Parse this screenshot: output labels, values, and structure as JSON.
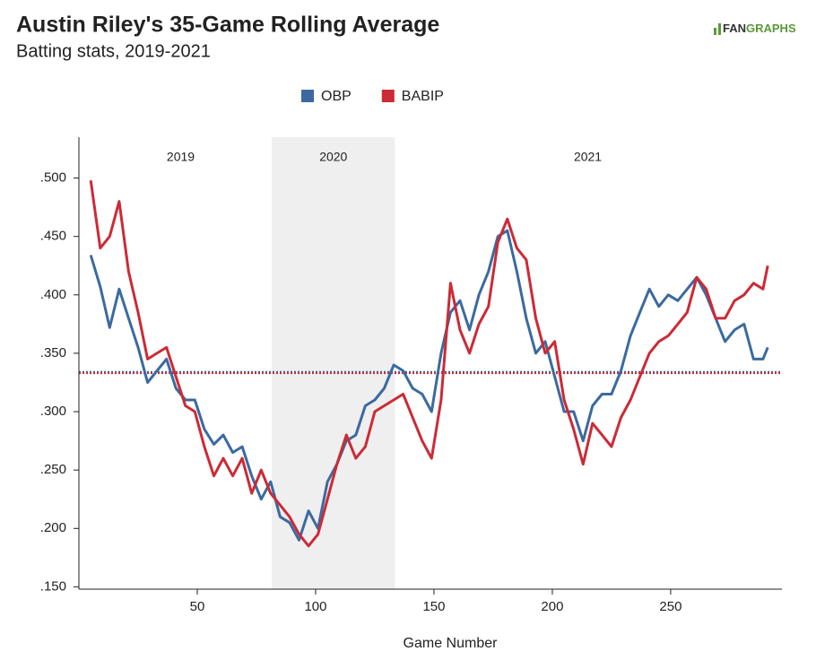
{
  "chart_data": {
    "type": "line",
    "title": "Austin Riley's 35-Game Rolling Average",
    "subtitle": "Batting stats, 2019-2021",
    "brand": {
      "part1": "FAN",
      "part2": "GRAPHS"
    },
    "x_label": "Game Number",
    "x": [
      5,
      9,
      13,
      17,
      21,
      25,
      29,
      33,
      37,
      41,
      45,
      49,
      53,
      57,
      61,
      65,
      69,
      73,
      77,
      81,
      85,
      89,
      93,
      97,
      101,
      105,
      109,
      113,
      117,
      121,
      125,
      129,
      133,
      137,
      141,
      145,
      149,
      153,
      157,
      161,
      165,
      169,
      173,
      177,
      181,
      185,
      189,
      193,
      197,
      201,
      205,
      209,
      213,
      217,
      221,
      225,
      229,
      233,
      237,
      241,
      245,
      249,
      253,
      257,
      261,
      265,
      269,
      273,
      277,
      281,
      285,
      289,
      291
    ],
    "series": [
      {
        "name": "OBP",
        "color": "#3b6aa0",
        "values": [
          0.434,
          0.407,
          0.372,
          0.405,
          0.38,
          0.355,
          0.325,
          0.335,
          0.345,
          0.32,
          0.31,
          0.31,
          0.285,
          0.272,
          0.28,
          0.265,
          0.27,
          0.245,
          0.225,
          0.24,
          0.21,
          0.205,
          0.19,
          0.215,
          0.2,
          0.24,
          0.255,
          0.275,
          0.28,
          0.305,
          0.31,
          0.32,
          0.34,
          0.335,
          0.32,
          0.315,
          0.3,
          0.35,
          0.385,
          0.395,
          0.37,
          0.4,
          0.42,
          0.45,
          0.455,
          0.42,
          0.38,
          0.35,
          0.36,
          0.33,
          0.3,
          0.3,
          0.275,
          0.305,
          0.315,
          0.315,
          0.335,
          0.365,
          0.385,
          0.405,
          0.39,
          0.4,
          0.395,
          0.405,
          0.415,
          0.4,
          0.38,
          0.36,
          0.37,
          0.375,
          0.345,
          0.345,
          0.355
        ]
      },
      {
        "name": "BABIP",
        "color": "#cc2a36",
        "values": [
          0.498,
          0.44,
          0.45,
          0.48,
          0.42,
          0.385,
          0.345,
          0.35,
          0.355,
          0.33,
          0.305,
          0.3,
          0.27,
          0.245,
          0.26,
          0.245,
          0.26,
          0.23,
          0.25,
          0.23,
          0.22,
          0.21,
          0.195,
          0.185,
          0.195,
          0.225,
          0.255,
          0.28,
          0.26,
          0.27,
          0.3,
          0.305,
          0.31,
          0.315,
          0.295,
          0.275,
          0.26,
          0.31,
          0.41,
          0.37,
          0.35,
          0.375,
          0.39,
          0.445,
          0.465,
          0.44,
          0.43,
          0.38,
          0.35,
          0.36,
          0.31,
          0.285,
          0.255,
          0.29,
          0.28,
          0.27,
          0.295,
          0.31,
          0.33,
          0.35,
          0.36,
          0.365,
          0.375,
          0.385,
          0.415,
          0.405,
          0.38,
          0.38,
          0.395,
          0.4,
          0.41,
          0.405,
          0.425
        ]
      }
    ],
    "reference_lines": [
      {
        "value": 0.334,
        "color": "#3b6aa0"
      },
      {
        "value": 0.333,
        "color": "#cc2a36"
      }
    ],
    "shaded_region": [
      81.5,
      133.5
    ],
    "annotations": [
      {
        "text": "2019",
        "x": 43
      },
      {
        "text": "2020",
        "x": 107.5
      },
      {
        "text": "2021",
        "x": 215
      }
    ],
    "xlim": [
      0,
      297
    ],
    "ylim": [
      0.148,
      0.535
    ],
    "xticks": [
      50,
      100,
      150,
      200,
      250
    ],
    "yticks": [
      {
        "value": 0.15,
        "label": ".150"
      },
      {
        "value": 0.2,
        "label": ".200"
      },
      {
        "value": 0.25,
        "label": ".250"
      },
      {
        "value": 0.3,
        "label": ".300"
      },
      {
        "value": 0.35,
        "label": ".350"
      },
      {
        "value": 0.4,
        "label": ".400"
      },
      {
        "value": 0.45,
        "label": ".450"
      },
      {
        "value": 0.5,
        "label": ".500"
      }
    ],
    "legend": "top"
  }
}
